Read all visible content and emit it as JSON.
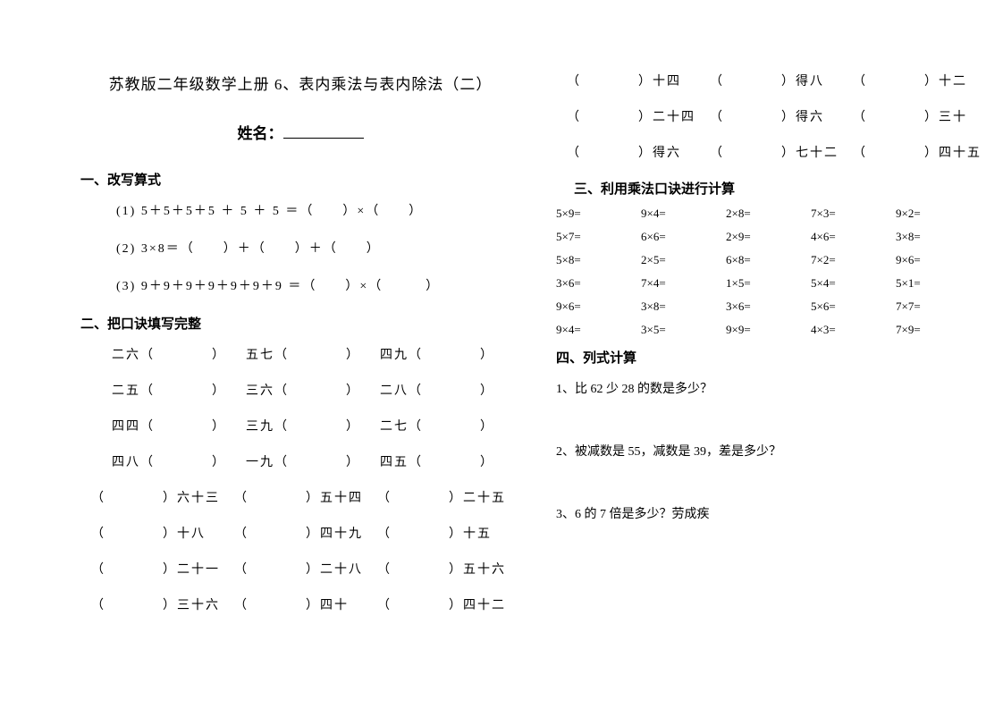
{
  "title": "苏教版二年级数学上册 6、表内乘法与表内除法（二）",
  "name_label": "姓名：",
  "s1": {
    "heading": "一、改写算式",
    "eq1": "(1) 5＋5＋5＋5 ＋ 5 ＋ 5 ＝（　　）×（　　）",
    "eq2": "(2) 3×8＝（　　）＋（　　）＋（　　）",
    "eq3": "(3) 9＋9＋9＋9＋9＋9＋9 ＝（　　）×（　　　）"
  },
  "s2": {
    "heading": "二、把口诀填写完整",
    "rows_a": [
      [
        "二六（　　　　）",
        "五七（　　　　）",
        "四九（　　　　）"
      ],
      [
        "二五（　　　　）",
        "三六（　　　　）",
        "二八（　　　　）"
      ],
      [
        "四四（　　　　）",
        "三九（　　　　）",
        "二七（　　　　）"
      ],
      [
        "四八（　　　　）",
        "一九（　　　　）",
        "四五（　　　　）"
      ]
    ],
    "rows_b": [
      [
        "（　　　　）六十三",
        "（　　　　）五十四",
        "（　　　　）二十五"
      ],
      [
        "（　　　　）十八",
        "（　　　　）四十九",
        "（　　　　）十五"
      ],
      [
        "（　　　　）二十一",
        "（　　　　）二十八",
        "（　　　　）五十六"
      ],
      [
        "（　　　　）三十六",
        "（　　　　）四十",
        "（　　　　）四十二"
      ]
    ],
    "rows_c": [
      [
        "（　　　　）十四",
        "（　　　　）得八",
        "（　　　　）十二"
      ],
      [
        "（　　　　）二十四",
        "（　　　　）得六",
        "（　　　　）三十"
      ],
      [
        "（　　　　）得六",
        "（　　　　）七十二",
        "（　　　　）四十五"
      ]
    ]
  },
  "s3": {
    "heading": "三、利用乘法口诀进行计算",
    "rows": [
      [
        "5×9=",
        "9×4=",
        "2×8=",
        "7×3=",
        "9×2="
      ],
      [
        "5×7=",
        "6×6=",
        "2×9=",
        "4×6=",
        "3×8="
      ],
      [
        "5×8=",
        "2×5=",
        "6×8=",
        "7×2=",
        "9×6="
      ],
      [
        "3×6=",
        "7×4=",
        "1×5=",
        "5×4=",
        "5×1="
      ],
      [
        "9×6=",
        "3×8=",
        "3×6=",
        "5×6=",
        "7×7="
      ],
      [
        "9×4=",
        "3×5=",
        "9×9=",
        "4×3=",
        "7×9="
      ]
    ]
  },
  "s4": {
    "heading": "四、列式计算",
    "q1": "1、比 62 少 28 的数是多少？",
    "q2": "2、被减数是 55，减数是 39，差是多少？",
    "q3": "3、6 的 7 倍是多少？劳成疾"
  }
}
